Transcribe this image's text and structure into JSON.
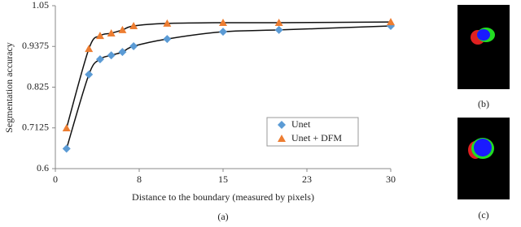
{
  "chart_data": {
    "type": "line",
    "x_label": "Distance to the boundary  (measured by pixels)",
    "y_label": "Segmentation accuracy",
    "panel_label": "(a)",
    "xlim": [
      0,
      30
    ],
    "xticks": [
      0,
      {
        "value": 7.5,
        "label": "8"
      },
      15,
      {
        "value": 22.5,
        "label": "23"
      },
      30
    ],
    "ylim": [
      0.6,
      1.05
    ],
    "yticks": [
      0.6,
      0.7125,
      0.825,
      0.9375,
      1.05
    ],
    "x": [
      1,
      3,
      4,
      5,
      6,
      7,
      10,
      15,
      20,
      30
    ],
    "legend": "center-right",
    "series": [
      {
        "name": "Unet",
        "color": "#5b9bd5",
        "marker": "diamond",
        "values": [
          0.655,
          0.86,
          0.902,
          0.913,
          0.922,
          0.938,
          0.958,
          0.978,
          0.983,
          0.994
        ]
      },
      {
        "name": "Unet + DFM",
        "color": "#ed7d31",
        "marker": "triangle",
        "values": [
          0.712,
          0.931,
          0.967,
          0.974,
          0.983,
          0.994,
          1.001,
          1.003,
          1.003,
          1.005
        ]
      }
    ]
  },
  "figures": [
    {
      "label": "(b)"
    },
    {
      "label": "(c)"
    }
  ]
}
